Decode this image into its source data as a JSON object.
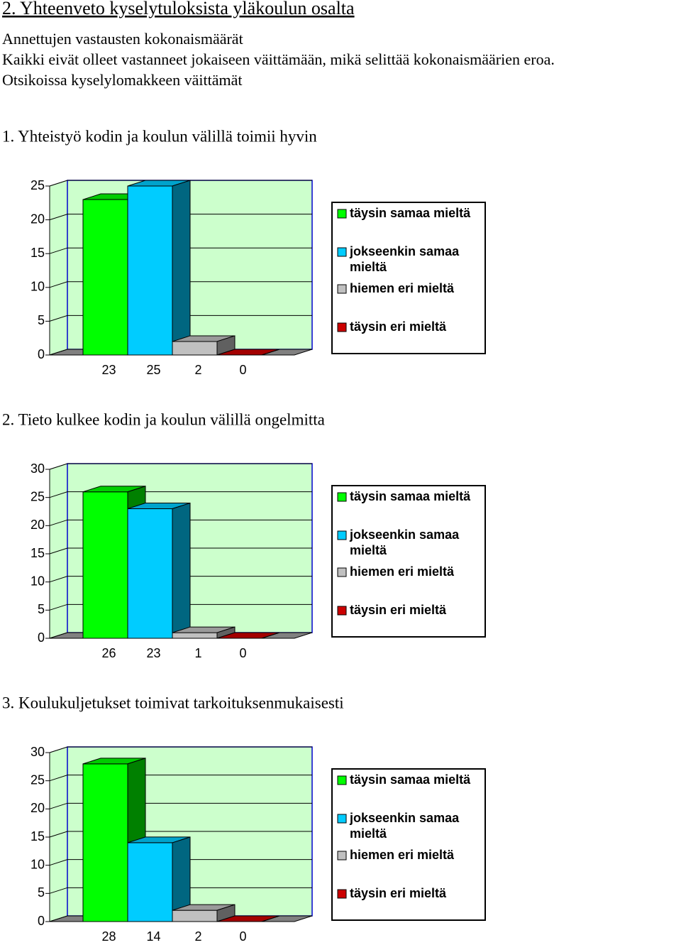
{
  "header": {
    "title": "2. Yhteenveto kyselytuloksista yläkoulun osalta",
    "lines": [
      "Annettujen vastausten kokonaismäärät",
      "Kaikki eivät olleet vastanneet jokaiseen väittämään, mikä selittää kokonaismäärien eroa.",
      "Otsikoissa kyselylomakkeen väittämät"
    ]
  },
  "chart_data": [
    {
      "type": "bar",
      "title": "1. Yhteistyö kodin ja koulun välillä toimii hyvin",
      "ylim": [
        0,
        25
      ],
      "yticks": [
        0,
        5,
        10,
        15,
        20,
        25
      ],
      "grid": true,
      "legend": "right",
      "series": [
        {
          "name": "täysin samaa mieltä",
          "color": "#00ff00",
          "values": [
            23
          ]
        },
        {
          "name": "jokseenkin samaa mieltä",
          "color": "#00ccff",
          "values": [
            25
          ]
        },
        {
          "name": "hiemen eri mieltä",
          "color": "#c0c0c0",
          "values": [
            2
          ]
        },
        {
          "name": "täysin eri mieltä",
          "color": "#cc0000",
          "values": [
            0
          ]
        }
      ]
    },
    {
      "type": "bar",
      "title": "2. Tieto kulkee kodin ja koulun välillä ongelmitta",
      "ylim": [
        0,
        30
      ],
      "yticks": [
        0,
        5,
        10,
        15,
        20,
        25,
        30
      ],
      "grid": true,
      "legend": "right",
      "series": [
        {
          "name": "täysin samaa mieltä",
          "color": "#00ff00",
          "values": [
            26
          ]
        },
        {
          "name": "jokseenkin samaa mieltä",
          "color": "#00ccff",
          "values": [
            23
          ]
        },
        {
          "name": "hiemen eri mieltä",
          "color": "#c0c0c0",
          "values": [
            1
          ]
        },
        {
          "name": "täysin eri mieltä",
          "color": "#cc0000",
          "values": [
            0
          ]
        }
      ]
    },
    {
      "type": "bar",
      "title": "3. Koulukuljetukset toimivat tarkoituksenmukaisesti",
      "ylim": [
        0,
        30
      ],
      "yticks": [
        0,
        5,
        10,
        15,
        20,
        25,
        30
      ],
      "grid": true,
      "legend": "right",
      "series": [
        {
          "name": "täysin samaa mieltä",
          "color": "#00ff00",
          "values": [
            28
          ]
        },
        {
          "name": "jokseenkin samaa mieltä",
          "color": "#00ccff",
          "values": [
            14
          ]
        },
        {
          "name": "hiemen eri mieltä",
          "color": "#c0c0c0",
          "values": [
            2
          ]
        },
        {
          "name": "täysin eri mieltä",
          "color": "#cc0000",
          "values": [
            0
          ]
        }
      ]
    }
  ]
}
